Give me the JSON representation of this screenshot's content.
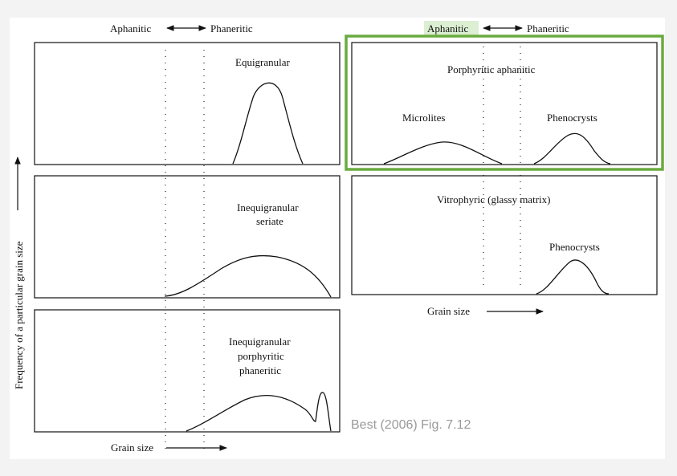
{
  "figure": {
    "scale_left": {
      "aphanitic": "Aphanitic",
      "phaneritic": "Phaneritic"
    },
    "scale_right": {
      "aphanitic": "Aphanitic",
      "phaneritic": "Phaneritic"
    },
    "y_axis_label": "Frequency of a particular grain size",
    "x_axis_label_left": "Grain size",
    "x_axis_label_right": "Grain size",
    "credit": "Best (2006) Fig. 7.12",
    "highlight_color": "#6aab3f",
    "highlight_label_bg": "#dcefd2",
    "panels": {
      "equigranular": {
        "title": "Equigranular"
      },
      "seriate": {
        "line1": "Inequigranular",
        "line2": "seriate"
      },
      "porphyritic_phaneritic": {
        "line1": "Inequigranular",
        "line2": "porphyritic",
        "line3": "phaneritic"
      },
      "porphyritic_aphanitic": {
        "title": "Porphyritic aphanitic",
        "microlites": "Microlites",
        "phenocrysts": "Phenocrysts"
      },
      "vitrophyric": {
        "title": "Vitrophyric (glassy matrix)",
        "phenocrysts": "Phenocrysts"
      }
    }
  }
}
